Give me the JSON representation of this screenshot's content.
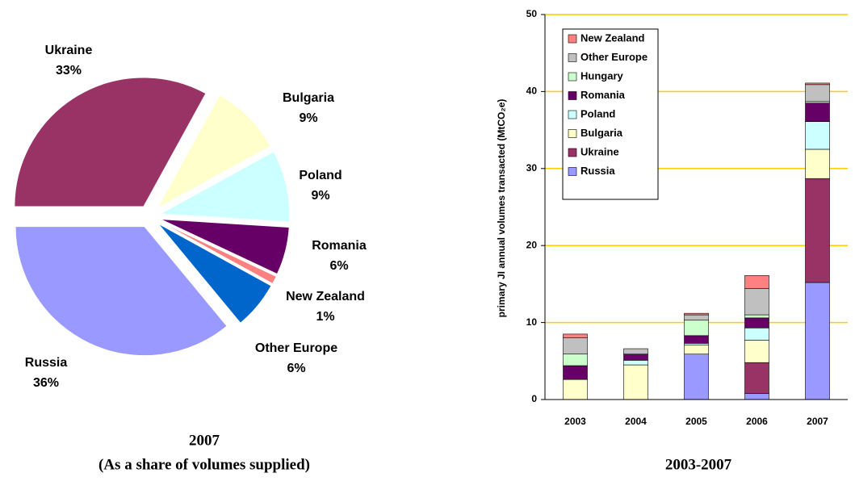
{
  "chart_data": [
    {
      "type": "pie",
      "title": "2007",
      "subtitle": "(As a share of volumes supplied)",
      "categories": [
        "Ukraine",
        "Bulgaria",
        "Poland",
        "Romania",
        "New Zealand",
        "Other Europe",
        "Russia"
      ],
      "values": [
        33,
        9,
        9,
        6,
        1,
        6,
        36
      ],
      "value_labels": [
        "33%",
        "9%",
        "9%",
        "6%",
        "1%",
        "6%",
        "36%"
      ],
      "colors": [
        "#993366",
        "#ffffcc",
        "#ccffff",
        "#660066",
        "#ff8080",
        "#0066cc",
        "#9999ff"
      ]
    },
    {
      "type": "stacked_bar",
      "title": "2003-2007",
      "y_label": "primary JI annual volumes transacted (MtCO₂e)",
      "categories": [
        "2003",
        "2004",
        "2005",
        "2006",
        "2007"
      ],
      "series": [
        {
          "name": "Russia",
          "color": "#9999ff",
          "values": [
            0,
            0,
            5.9,
            0.8,
            15.2
          ]
        },
        {
          "name": "Ukraine",
          "color": "#993366",
          "values": [
            0,
            0,
            0,
            4.0,
            13.5
          ]
        },
        {
          "name": "Bulgaria",
          "color": "#ffffcc",
          "values": [
            2.6,
            4.5,
            1.2,
            2.9,
            3.8
          ]
        },
        {
          "name": "Poland",
          "color": "#ccffff",
          "values": [
            0,
            0.6,
            0.2,
            1.6,
            3.6
          ]
        },
        {
          "name": "Romania",
          "color": "#660066",
          "values": [
            1.8,
            0.8,
            1.0,
            1.3,
            2.4
          ]
        },
        {
          "name": "Hungary",
          "color": "#ccffcc",
          "values": [
            1.5,
            0,
            2.0,
            0.4,
            0.2
          ]
        },
        {
          "name": "Other Europe",
          "color": "#c0c0c0",
          "values": [
            2.1,
            0.7,
            0.7,
            3.4,
            2.2
          ]
        },
        {
          "name": "New Zealand",
          "color": "#ff8080",
          "values": [
            0.5,
            0,
            0.2,
            1.7,
            0.2
          ]
        }
      ],
      "ylim": [
        0,
        50
      ],
      "yticks": [
        0,
        10,
        20,
        30,
        40,
        50
      ],
      "grid": true,
      "grid_color": "#ffcc00"
    }
  ]
}
